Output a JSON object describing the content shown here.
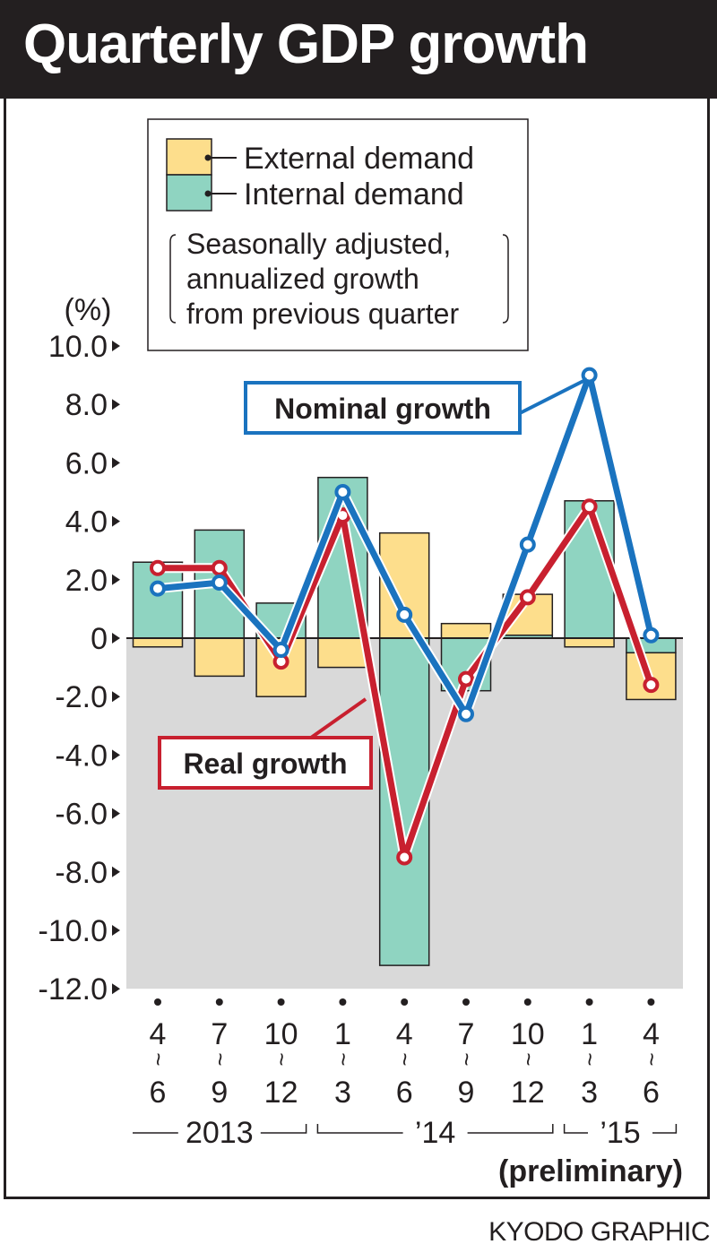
{
  "title": "Quarterly GDP growth",
  "source": "KYODO GRAPHIC",
  "legend": {
    "external": "External demand",
    "internal": "Internal demand",
    "note_lines": [
      "Seasonally adjusted,",
      "annualized growth",
      "from previous quarter"
    ]
  },
  "colors": {
    "external": "#fdde8c",
    "internal": "#8fd4c1",
    "nominal": "#1a73bf",
    "real": "#c8202f",
    "background_negative": "#d9d9d9",
    "title_bar": "#231f20"
  },
  "chart_data": {
    "type": "bar",
    "stacked": true,
    "ylabel": "(%)",
    "ylim": [
      -12,
      10
    ],
    "yticks": [
      10,
      8,
      6,
      4,
      2,
      0,
      -2,
      -4,
      -6,
      -8,
      -10,
      -12
    ],
    "ytick_labels": [
      "10.0",
      "8.0",
      "6.0",
      "4.0",
      "2.0",
      "0",
      "-2.0",
      "-4.0",
      "-6.0",
      "-8.0",
      "-10.0",
      "-12.0"
    ],
    "categories": [
      {
        "top": "4",
        "bottom": "6"
      },
      {
        "top": "7",
        "bottom": "9"
      },
      {
        "top": "10",
        "bottom": "12"
      },
      {
        "top": "1",
        "bottom": "3"
      },
      {
        "top": "4",
        "bottom": "6"
      },
      {
        "top": "7",
        "bottom": "9"
      },
      {
        "top": "10",
        "bottom": "12"
      },
      {
        "top": "1",
        "bottom": "3"
      },
      {
        "top": "4",
        "bottom": "6"
      }
    ],
    "years": [
      {
        "label": "2013",
        "from": 0,
        "to": 2
      },
      {
        "label": "’14",
        "from": 3,
        "to": 6
      },
      {
        "label": "’15",
        "from": 7,
        "to": 8
      }
    ],
    "preliminary_label": "(preliminary)",
    "series": [
      {
        "name": "External demand",
        "kind": "bar",
        "values": [
          -0.3,
          -1.3,
          -2.0,
          -1.0,
          3.6,
          0.5,
          1.4,
          -0.3,
          -1.6
        ]
      },
      {
        "name": "Internal demand",
        "kind": "bar",
        "values": [
          2.6,
          3.7,
          1.2,
          5.5,
          -11.2,
          -1.8,
          0.1,
          4.7,
          -0.5
        ]
      },
      {
        "name": "Nominal growth",
        "kind": "line",
        "values": [
          1.7,
          1.9,
          -0.4,
          5.0,
          0.8,
          -2.6,
          3.2,
          9.0,
          0.1
        ]
      },
      {
        "name": "Real growth",
        "kind": "line",
        "values": [
          2.4,
          2.4,
          -0.8,
          4.2,
          -7.5,
          -1.4,
          1.4,
          4.5,
          -1.6
        ]
      }
    ]
  }
}
